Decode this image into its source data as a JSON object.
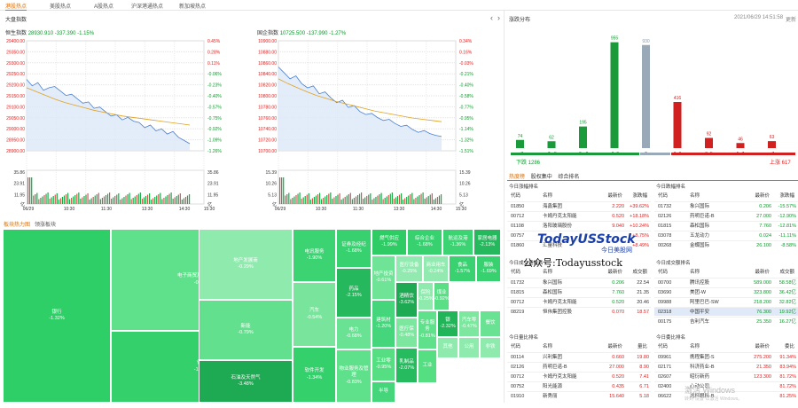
{
  "nav": {
    "tabs": [
      "港股热点",
      "美股热点",
      "A股热点",
      "沪深港通热点",
      "新加坡热点"
    ],
    "active": 0
  },
  "market": {
    "title": "大盘指数",
    "prev": "‹",
    "next": "›",
    "hsi": {
      "name": "恒生指数",
      "value": "28930.910",
      "change": "-337.390",
      "pct": "-1.15%",
      "y_left": [
        "29400.00",
        "29350.00",
        "29300.00",
        "29250.00",
        "29200.00",
        "29150.00",
        "29100.00",
        "29050.00",
        "29000.00",
        "28950.00",
        "28900.00"
      ],
      "y_right": [
        "0.45%",
        "0.28%",
        "0.11%",
        "-0.06%",
        "-0.23%",
        "-0.40%",
        "-0.57%",
        "-0.75%",
        "-0.92%",
        "-1.09%",
        "-1.26%"
      ],
      "vol_left": [
        "35.86",
        "23.91",
        "11.95"
      ],
      "vol_right": [
        "35.86",
        "23.91",
        "11.95"
      ],
      "vol_unit": "亿",
      "vol_unit_left": "亿",
      "x": [
        "06/29",
        "10:30",
        "11:30",
        "13:30",
        "14:30",
        "15:30"
      ],
      "price": [
        -0.15,
        -0.25,
        -0.2,
        -0.32,
        -0.28,
        -0.26,
        -0.33,
        -0.4,
        -0.38,
        -0.45,
        -0.52,
        -0.5,
        -0.6,
        -0.58,
        -0.65,
        -0.72,
        -0.7,
        -0.78,
        -0.74,
        -0.8,
        -0.82,
        -0.9,
        -0.86,
        -0.95,
        -0.92,
        -1.0,
        -0.96,
        -1.05,
        -1.1,
        -1.15
      ],
      "avg": [
        -0.28,
        -0.34,
        -0.4,
        -0.46,
        -0.51,
        -0.55,
        -0.59,
        -0.63,
        -0.66,
        -0.69,
        -0.72,
        -0.74,
        -0.76,
        -0.78,
        -0.8,
        -0.82,
        -0.84,
        -0.86
      ]
    },
    "hsce": {
      "name": "国企指数",
      "value": "10725.500",
      "change": "-137.990",
      "pct": "-1.27%",
      "y_left": [
        "10900.00",
        "10880.00",
        "10860.00",
        "10840.00",
        "10820.00",
        "10800.00",
        "10780.00",
        "10760.00",
        "10740.00",
        "10720.00",
        "10700.00"
      ],
      "y_right": [
        "0.34%",
        "0.16%",
        "-0.03%",
        "-0.21%",
        "-0.40%",
        "-0.58%",
        "-0.77%",
        "-0.95%",
        "-1.14%",
        "-1.32%",
        "-1.51%"
      ],
      "vol_left": [
        "15.39",
        "10.26",
        "5.13"
      ],
      "vol_right": [
        "15.39",
        "10.26",
        "5.13"
      ],
      "vol_unit": "亿",
      "vol_unit_left": "亿",
      "x": [
        "06/29",
        "10:30",
        "11:30",
        "13:30",
        "14:30",
        "15:30"
      ],
      "price": [
        -0.1,
        -0.2,
        -0.3,
        -0.25,
        -0.38,
        -0.45,
        -0.42,
        -0.55,
        -0.52,
        -0.62,
        -0.7,
        -0.66,
        -0.78,
        -0.75,
        -0.85,
        -0.9,
        -0.88,
        -0.95,
        -1.0,
        -0.98,
        -1.05,
        -1.1,
        -1.08,
        -1.15,
        -1.2,
        -1.17,
        -1.22,
        -1.25,
        -1.27
      ],
      "avg": [
        -0.3,
        -0.38,
        -0.45,
        -0.52,
        -0.58,
        -0.63,
        -0.68,
        -0.72,
        -0.76,
        -0.8,
        -0.84,
        -0.87,
        -0.9,
        -0.93,
        -0.96,
        -0.98,
        -1.0,
        -1.02
      ]
    }
  },
  "heatmap": {
    "tabs": [
      "板块热力图",
      "领涨板块"
    ],
    "tiles": [
      {
        "n": "银行",
        "p": "-1.32%",
        "c": "#2fcf68"
      },
      {
        "n": "电子商贸及互联网服务",
        "p": "-0.81%",
        "c": "#5fe08a"
      },
      {
        "n": "保险",
        "p": "-1.30%",
        "c": "#34d06c"
      },
      {
        "n": "地产发展商",
        "p": "-0.29%",
        "c": "#8feaae"
      },
      {
        "n": "新能",
        "p": "-0.79%",
        "c": "#62e08d"
      },
      {
        "n": "石油及天然气",
        "p": "-3.48%",
        "c": "#1ea953"
      },
      {
        "n": "电讯服务",
        "p": "-1.90%",
        "c": "#3cd372"
      },
      {
        "n": "汽车",
        "p": "-0.54%",
        "c": "#79e59c"
      },
      {
        "n": "软件开发",
        "p": "-1.34%",
        "c": "#34d06c"
      },
      {
        "n": "证券及经纪",
        "p": "-1.68%",
        "c": "#38d170"
      },
      {
        "n": "燃气供应",
        "p": "-1.99%",
        "c": "#2fcc66"
      },
      {
        "n": "综合企业",
        "p": "-1.68%",
        "c": "#38d170"
      },
      {
        "n": "航运及港",
        "p": "-1.36%",
        "c": "#3cd372"
      },
      {
        "n": "家居电器",
        "p": "-2.13%",
        "c": "#25b85c"
      },
      {
        "n": "药品",
        "p": "-2.15%",
        "c": "#25b85c"
      },
      {
        "n": "电力",
        "p": "-0.68%",
        "c": "#6ae293"
      },
      {
        "n": "物业服务及管理",
        "p": "-0.83%",
        "c": "#5fe08a"
      },
      {
        "n": "地产投资",
        "p": "-0.61%",
        "c": "#6fe396"
      },
      {
        "n": "医疗设备",
        "p": "-0.25%",
        "c": "#92eab0"
      },
      {
        "n": "商业用车",
        "p": "-0.24%",
        "c": "#92eab0"
      },
      {
        "n": "食品",
        "p": "-1.57%",
        "c": "#3ad171"
      },
      {
        "n": "服装",
        "p": "-1.69%",
        "c": "#38d170"
      },
      {
        "n": "酒精饮",
        "p": "-3.62%",
        "c": "#1ea953"
      },
      {
        "n": "保险",
        "p": "-0.25%",
        "c": "#8feaae"
      },
      {
        "n": "煤业",
        "p": "-0.92%",
        "c": "#5adf86"
      },
      {
        "n": "建筑材",
        "p": "-1.20%",
        "c": "#45d57a"
      },
      {
        "n": "医疗保",
        "p": "-0.48%",
        "c": "#7de69f"
      },
      {
        "n": "工业零",
        "p": "-0.95%",
        "c": "#56de83"
      },
      {
        "n": "专业服务",
        "p": "-0.81%",
        "c": "#5fe08a"
      },
      {
        "n": "乳制品",
        "p": "-2.07%",
        "c": "#26bb5e"
      },
      {
        "n": "银",
        "p": "-2.32%",
        "c": "#22b458"
      },
      {
        "n": "汽车零",
        "p": "-0.47%",
        "c": "#7de69f"
      },
      {
        "n": "餐饮",
        "p": "",
        "c": "#6ae293"
      },
      {
        "n": "公用",
        "p": "",
        "c": "#8feaae"
      },
      {
        "n": "非铁",
        "p": "",
        "c": "#8feaae"
      },
      {
        "n": "其他",
        "p": "",
        "c": "#8feaae"
      },
      {
        "n": "半导",
        "p": "",
        "c": "#45d57a"
      },
      {
        "n": "工业",
        "p": "",
        "c": "#56de83"
      }
    ]
  },
  "dist": {
    "title": "涨跌分布",
    "datetime": "2021/06/29 14:51:58",
    "more": "更新",
    "chart_data": {
      "type": "bar",
      "categories": [
        "≤-7",
        "-7~-5",
        "-5~-3",
        "-3~0",
        "0",
        "0~3",
        "3~5",
        "5~7",
        "≥7"
      ],
      "values": [
        74,
        62,
        195,
        955,
        930,
        416,
        92,
        46,
        63
      ],
      "colors": [
        "#1a9a3a",
        "#1a9a3a",
        "#1a9a3a",
        "#1a9a3a",
        "#9aa9b8",
        "#d02020",
        "#d02020",
        "#d02020",
        "#d02020"
      ],
      "ylim": [
        0,
        1000
      ]
    },
    "down_label": "下跌 1286",
    "up_label": "上涨 617"
  },
  "ranks": {
    "tabs": [
      "热度榜",
      "股权集中",
      "综合排名"
    ],
    "tables": [
      {
        "title": "今日涨幅排名",
        "cols": [
          "代码",
          "名称",
          "最新价",
          "涨跌幅"
        ],
        "rows": [
          [
            "01850",
            "海鑫集团",
            "2.220",
            "+39.62%"
          ],
          [
            "00712",
            "卡姆丹克太阳能",
            "0.520",
            "+18.18%"
          ],
          [
            "01108",
            "洛阳玻璃股份",
            "9.040",
            "+10.24%"
          ],
          [
            "00757",
            "",
            "",
            "+8.75%"
          ],
          [
            "01860",
            "汇量科技",
            "",
            "+8.49%"
          ]
        ],
        "vc": "red"
      },
      {
        "title": "今日跌幅排名",
        "cols": [
          "代码",
          "名称",
          "最新价",
          "涨跌幅"
        ],
        "rows": [
          [
            "01732",
            "象兴国际",
            "0.206",
            "-15.57%"
          ],
          [
            "02126",
            "药明巨诺-B",
            "27.000",
            "-12.90%"
          ],
          [
            "01815",
            "森松国际",
            "7.760",
            "-12.81%"
          ],
          [
            "03078",
            "五龙动力",
            "0.024",
            "-11.11%"
          ],
          [
            "00268",
            "金蝶国际",
            "26.100",
            "-8.58%"
          ]
        ],
        "vc": "grn"
      },
      {
        "title": "今日成交量排名",
        "cols": [
          "代码",
          "名称",
          "最新价",
          "成交额"
        ],
        "rows": [
          [
            "01732",
            "象兴国际",
            "0.206",
            "22.54"
          ],
          [
            "01815",
            "森松国际",
            "7.760",
            "21.35"
          ],
          [
            "00712",
            "卡姆丹克太阳能",
            "0.520",
            "20.46"
          ],
          [
            "08219",
            "恒伟集团控股",
            "0.070",
            "18.57"
          ]
        ],
        "vc": "mix"
      },
      {
        "title": "今日成交额排名",
        "cols": [
          "代码",
          "名称",
          "最新价",
          "成交额"
        ],
        "rows": [
          [
            "00700",
            "腾讯控股",
            "589.000",
            "58.58亿"
          ],
          [
            "03690",
            "美团-W",
            "323.800",
            "36.42亿"
          ],
          [
            "09988",
            "阿里巴巴-SW",
            "218.200",
            "32.82亿"
          ],
          [
            "02318",
            "中国平安",
            "76.300",
            "19.92亿"
          ],
          [
            "00175",
            "吉利汽车",
            "25.350",
            "16.27亿"
          ]
        ],
        "vc": "grn"
      },
      {
        "title": "今日量比排名",
        "cols": [
          "代码",
          "名称",
          "最新价",
          "量比"
        ],
        "rows": [
          [
            "00114",
            "兴利集团",
            "0.660",
            "19.80"
          ],
          [
            "02126",
            "药明巨诺-B",
            "27.000",
            "8.90"
          ],
          [
            "00712",
            "卡姆丹克太阳能",
            "0.520",
            "7.41"
          ],
          [
            "00752",
            "阳光能源",
            "0.435",
            "6.71"
          ],
          [
            "01910",
            "新秀丽",
            "15.640",
            "5.18"
          ]
        ],
        "vc": "red"
      },
      {
        "title": "今日委比排名",
        "cols": [
          "代码",
          "名称",
          "最新价",
          "委比"
        ],
        "rows": [
          [
            "09961",
            "携程集团-S",
            "275.200",
            "91.34%"
          ],
          [
            "02171",
            "科济药业-B",
            "21.350",
            "83.94%"
          ],
          [
            "02607",
            "昭衍新药",
            "123.300",
            "81.72%"
          ],
          [
            "02400",
            "心动公司",
            "",
            "81.72%"
          ],
          [
            "06622",
            "兆科眼科-B",
            "",
            "81.25%"
          ]
        ],
        "vc": "red"
      }
    ]
  },
  "watermark": {
    "logo": "TodayUSStock",
    "sub": "今日美股网",
    "wechat": "公众号:Todayusstock",
    "windows": "激活 Windows",
    "windows_sub": "转到\"设置\"以激活 Windows。"
  }
}
